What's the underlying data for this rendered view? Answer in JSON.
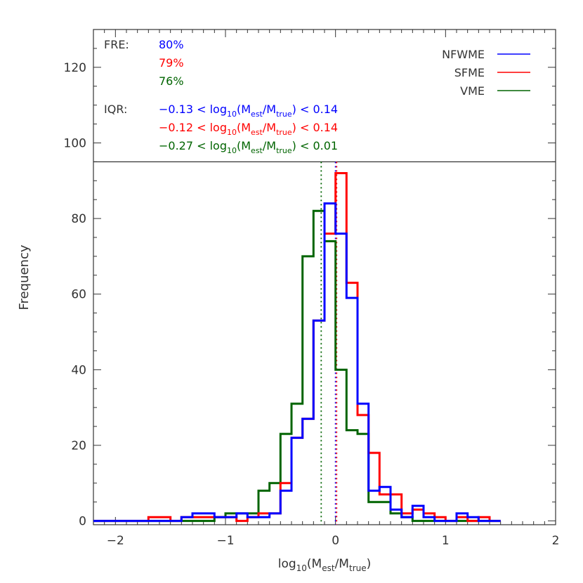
{
  "chart_data": {
    "type": "histogram",
    "xlabel": {
      "main": "log",
      "sub": "10",
      "open": "(M",
      "est": "est",
      "slash": "/M",
      "true": "true",
      "close": ")"
    },
    "ylabel": "Frequency",
    "xlim": [
      -2.2,
      2.0
    ],
    "ylim": [
      -1,
      130
    ],
    "xticks": [
      -2,
      -1,
      0,
      1,
      2
    ],
    "yticks": [
      0,
      20,
      40,
      60,
      80,
      100,
      120
    ],
    "bin_edges": [
      -2.2,
      -1.7,
      -1.6,
      -1.5,
      -1.4,
      -1.3,
      -1.2,
      -1.1,
      -1.0,
      -0.9,
      -0.8,
      -0.7,
      -0.6,
      -0.5,
      -0.4,
      -0.3,
      -0.2,
      -0.1,
      0.0,
      0.1,
      0.2,
      0.3,
      0.4,
      0.5,
      0.6,
      0.7,
      0.8,
      0.9,
      1.0,
      1.1,
      1.2,
      1.3,
      1.4,
      1.5
    ],
    "separator_y": 95,
    "series": [
      {
        "name": "NFWME",
        "color": "#0000ff",
        "median": 0.0,
        "values": [
          0,
          0,
          0,
          0,
          1,
          2,
          2,
          1,
          1,
          2,
          1,
          1,
          2,
          8,
          22,
          27,
          53,
          84,
          76,
          59,
          31,
          8,
          9,
          3,
          1,
          4,
          1,
          0,
          0,
          2,
          1,
          0,
          0
        ]
      },
      {
        "name": "SFME",
        "color": "#ff0000",
        "median": 0.01,
        "values": [
          0,
          1,
          1,
          0,
          1,
          1,
          1,
          1,
          1,
          0,
          1,
          2,
          2,
          10,
          22,
          27,
          53,
          76,
          92,
          63,
          28,
          18,
          7,
          7,
          2,
          3,
          2,
          1,
          0,
          1,
          0,
          1,
          0
        ]
      },
      {
        "name": "VME",
        "color": "#006400",
        "median": -0.13,
        "values": [
          0,
          0,
          0,
          0,
          0,
          0,
          0,
          1,
          2,
          2,
          2,
          8,
          10,
          23,
          31,
          70,
          82,
          74,
          40,
          24,
          23,
          5,
          5,
          2,
          1,
          0,
          0,
          0,
          0,
          0,
          0,
          0,
          0
        ]
      }
    ],
    "legend": {
      "position": "top-right",
      "entries": [
        {
          "label": "NFWME",
          "color": "#0000ff"
        },
        {
          "label": "SFME",
          "color": "#ff0000"
        },
        {
          "label": "VME",
          "color": "#006400"
        }
      ]
    },
    "annotations": {
      "fre_label": "FRE:",
      "fre_values": [
        {
          "text": "80%",
          "color": "#0000ff"
        },
        {
          "text": "79%",
          "color": "#ff0000"
        },
        {
          "text": "76%",
          "color": "#006400"
        }
      ],
      "iqr_label": "IQR:",
      "iqr_rows": [
        {
          "low": "−0.13",
          "high": "0.14",
          "color": "#0000ff"
        },
        {
          "low": "−0.12",
          "high": "0.14",
          "color": "#ff0000"
        },
        {
          "low": "−0.27",
          "high": "0.01",
          "color": "#006400"
        }
      ],
      "iqr_middle": {
        "lt": "<",
        "log": "log",
        "sub10": "10",
        "open": "(M",
        "est": "est",
        "slash": "/M",
        "true": "true",
        "close": ")"
      }
    }
  }
}
